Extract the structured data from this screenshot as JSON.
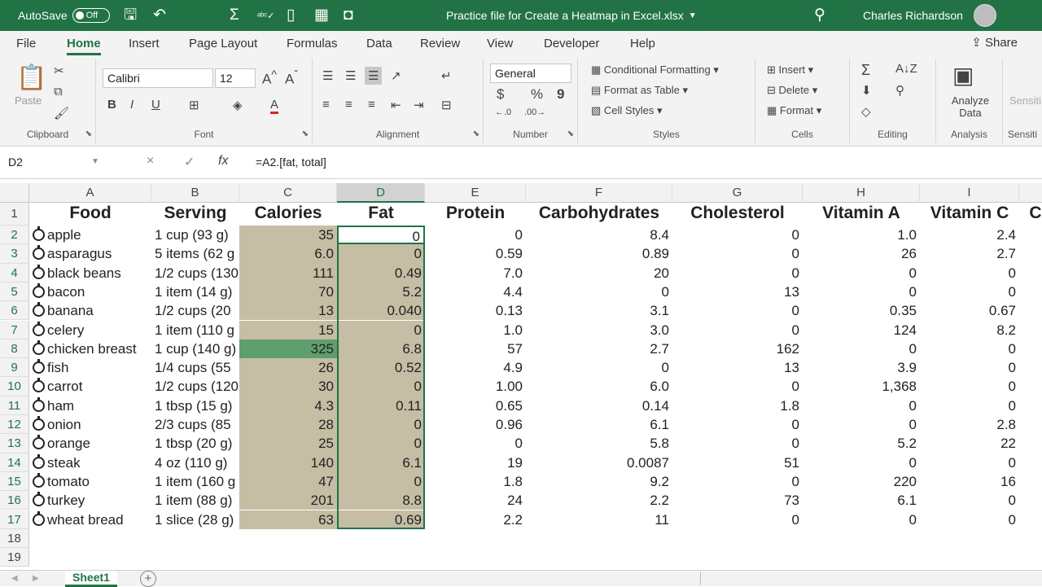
{
  "titlebar": {
    "autosave_label": "AutoSave",
    "autosave_state": "Off",
    "document_title": "Practice file for Create a Heatmap in Excel.xlsx",
    "user_name": "Charles Richardson",
    "quick_access_icons": [
      "save-icon",
      "undo-icon",
      "autosum-icon",
      "spelling-icon",
      "new-file-icon",
      "camera-icon"
    ]
  },
  "tabs": [
    "File",
    "Home",
    "Insert",
    "Page Layout",
    "Formulas",
    "Data",
    "Review",
    "View",
    "Developer",
    "Help"
  ],
  "active_tab": "Home",
  "share_label": "Share",
  "ribbon": {
    "clipboard": {
      "paste": "Paste",
      "label": "Clipboard"
    },
    "font": {
      "name": "Calibri",
      "size": "12",
      "label": "Font",
      "bold": "B",
      "italic": "I",
      "underline": "U"
    },
    "alignment": {
      "label": "Alignment"
    },
    "number": {
      "format": "General",
      "currency": "$",
      "percent": "%",
      "comma": "9",
      "label": "Number"
    },
    "styles": {
      "conditional": "Conditional Formatting",
      "table": "Format as Table",
      "cell_styles": "Cell Styles",
      "label": "Styles"
    },
    "cells": {
      "insert": "Insert",
      "delete": "Delete",
      "format": "Format",
      "label": "Cells"
    },
    "editing": {
      "label": "Editing"
    },
    "analysis": {
      "analyze": "Analyze Data",
      "label": "Analysis",
      "sensitivity_cut": "Sensiti",
      "sensitivity_label_cut": "Sensiti"
    }
  },
  "formula_bar": {
    "name_box": "D2",
    "cancel": "×",
    "enter": "✓",
    "fx": "fx",
    "formula": "=A2.[fat, total]"
  },
  "grid": {
    "columns": [
      "A",
      "B",
      "C",
      "D",
      "E",
      "F",
      "G",
      "H",
      "I"
    ],
    "row_numbers": [
      "1",
      "2",
      "3",
      "4",
      "5",
      "6",
      "7",
      "8",
      "9",
      "10",
      "11",
      "12",
      "13",
      "14",
      "15",
      "16",
      "17",
      "18",
      "19"
    ],
    "headers": [
      "Food",
      "Serving",
      "Calories",
      "Fat",
      "Protein",
      "Carbohydrates",
      "Cholesterol",
      "Vitamin A",
      "Vitamin C",
      "C"
    ],
    "rows": [
      [
        "apple",
        "1 cup (93 g)",
        "35",
        "0",
        "0",
        "8.4",
        "0",
        "1.0",
        "2.4"
      ],
      [
        "asparagus",
        "5 items (62 g",
        "6.0",
        "0",
        "0.59",
        "0.89",
        "0",
        "26",
        "2.7"
      ],
      [
        "black beans",
        "1/2 cups (130",
        "111",
        "0.49",
        "7.0",
        "20",
        "0",
        "0",
        "0"
      ],
      [
        "bacon",
        "1 item (14 g)",
        "70",
        "5.2",
        "4.4",
        "0",
        "13",
        "0",
        "0"
      ],
      [
        "banana",
        "1/2 cups (20",
        "13",
        "0.040",
        "0.13",
        "3.1",
        "0",
        "0.35",
        "0.67"
      ],
      [
        "celery",
        "1 item (110 g",
        "15",
        "0",
        "1.0",
        "3.0",
        "0",
        "124",
        "8.2"
      ],
      [
        "chicken breast",
        "1 cup (140 g)",
        "325",
        "6.8",
        "57",
        "2.7",
        "162",
        "0",
        "0"
      ],
      [
        "fish",
        "1/4 cups (55",
        "26",
        "0.52",
        "4.9",
        "0",
        "13",
        "3.9",
        "0"
      ],
      [
        "carrot",
        "1/2 cups (120",
        "30",
        "0",
        "1.00",
        "6.0",
        "0",
        "1,368",
        "0"
      ],
      [
        "ham",
        "1 tbsp (15 g)",
        "4.3",
        "0.11",
        "0.65",
        "0.14",
        "1.8",
        "0",
        "0"
      ],
      [
        "onion",
        "2/3 cups (85",
        "28",
        "0",
        "0.96",
        "6.1",
        "0",
        "0",
        "2.8"
      ],
      [
        "orange",
        "1 tbsp (20 g)",
        "25",
        "0",
        "0",
        "5.8",
        "0",
        "5.2",
        "22"
      ],
      [
        "steak",
        "4 oz (110 g)",
        "140",
        "6.1",
        "19",
        "0.0087",
        "51",
        "0",
        "0"
      ],
      [
        "tomato",
        "1 item (160 g",
        "47",
        "0",
        "1.8",
        "9.2",
        "0",
        "220",
        "16"
      ],
      [
        "turkey",
        "1 item (88 g)",
        "201",
        "8.8",
        "24",
        "2.2",
        "73",
        "6.1",
        "0"
      ],
      [
        "wheat bread",
        "1 slice (28 g)",
        "63",
        "0.69",
        "2.2",
        "11",
        "0",
        "0",
        "0"
      ]
    ]
  },
  "status": {
    "sheet_tab": "Sheet1",
    "add_sheet": "+"
  },
  "colors": {
    "excel_green": "#217346",
    "heat_fill": "#c5bda4",
    "heat_max": "#5f9e6e"
  }
}
